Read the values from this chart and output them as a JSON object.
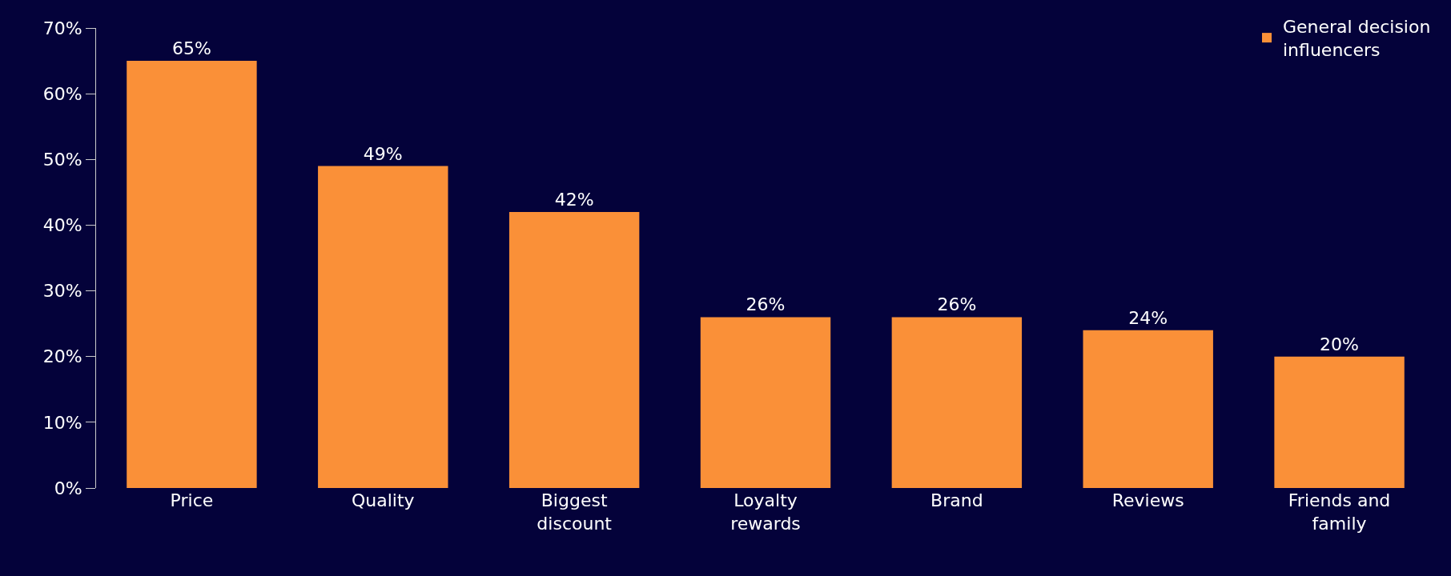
{
  "chart_data": {
    "type": "bar",
    "categories": [
      "Price",
      "Quality",
      "Biggest discount",
      "Loyalty rewards",
      "Brand",
      "Reviews",
      "Friends and family"
    ],
    "series": [
      {
        "name": "General decision influencers",
        "color": "#fa9038",
        "values": [
          65,
          49,
          42,
          26,
          26,
          24,
          20
        ],
        "value_labels": [
          "65%",
          "49%",
          "42%",
          "26%",
          "26%",
          "24%",
          "20%"
        ]
      }
    ],
    "ylim": [
      0,
      70
    ],
    "yticks": [
      {
        "value": 0,
        "label": "0%"
      },
      {
        "value": 10,
        "label": "10%"
      },
      {
        "value": 20,
        "label": "20%"
      },
      {
        "value": 30,
        "label": "30%"
      },
      {
        "value": 40,
        "label": "40%"
      },
      {
        "value": 50,
        "label": "50%"
      },
      {
        "value": 60,
        "label": "60%"
      },
      {
        "value": 70,
        "label": "70%"
      }
    ],
    "grid": false,
    "legend": "top right"
  }
}
